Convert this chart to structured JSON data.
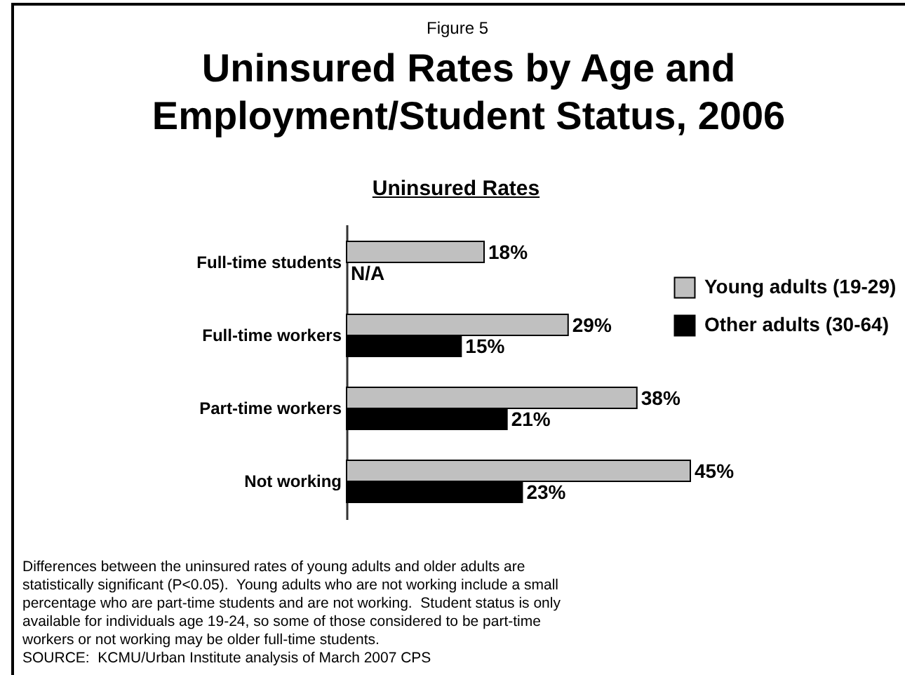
{
  "chart_data": {
    "type": "bar",
    "orientation": "horizontal",
    "title": "Uninsured Rates by Age and Employment/Student Status, 2006",
    "subtitle": "Uninsured Rates",
    "annotations": [
      "Figure 5",
      "Differences between the uninsured rates of young adults and older adults are statistically significant (P<0.05).  Young adults who are not working include a small percentage who are part-time students and are not working.  Student status is only available for individuals age 19-24, so some of those considered to be part-time workers or not working may be older full-time students.",
      "SOURCE:  KCMU/Urban Institute analysis of March 2007 CPS"
    ],
    "categories": [
      "Full-time students",
      "Full-time workers",
      "Part-time workers",
      "Not working"
    ],
    "series": [
      {
        "name": "Young adults (19-29)",
        "color": "#c0c0c0",
        "values": [
          18,
          29,
          38,
          45
        ],
        "value_labels": [
          "18%",
          "29%",
          "38%",
          "45%"
        ]
      },
      {
        "name": "Other adults (30-64)",
        "color": "#000000",
        "values": [
          null,
          15,
          21,
          23
        ],
        "value_labels": [
          "N/A",
          "15%",
          "21%",
          "23%"
        ]
      }
    ],
    "legend": "right"
  }
}
